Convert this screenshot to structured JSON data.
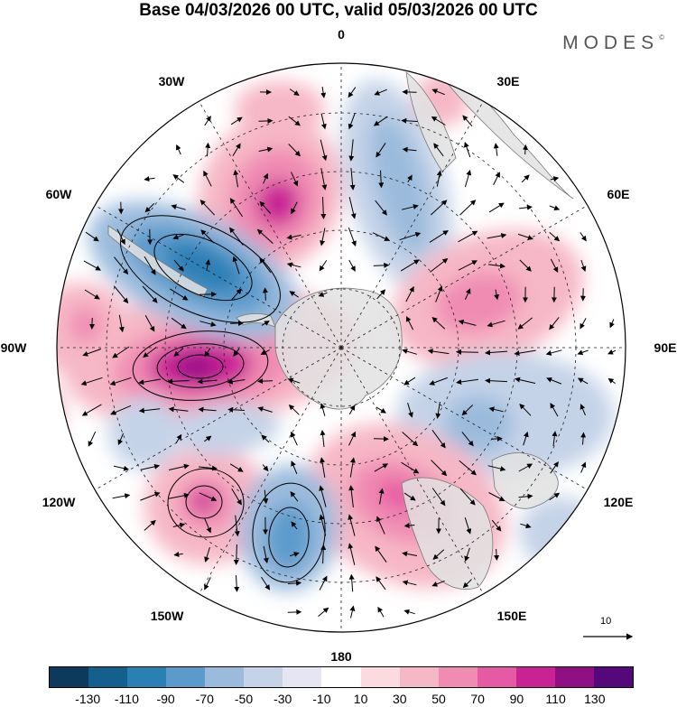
{
  "title": "Base 04/03/2026 00 UTC, valid 05/03/2026 00 UTC",
  "brand": "MODES",
  "brand_mark": "©",
  "map": {
    "projection": "south-polar-stereographic",
    "longitude_labels": [
      "0",
      "30E",
      "60E",
      "90E",
      "120E",
      "150E",
      "180",
      "150W",
      "120W",
      "90W",
      "60W",
      "30W"
    ],
    "grid_style": "dashed",
    "contour_color": "#000000"
  },
  "reference_vector": {
    "label": "10"
  },
  "colorbar": {
    "colors": [
      "#0c3a5c",
      "#135f8e",
      "#2a7fb5",
      "#5b9bcc",
      "#9bbbdd",
      "#c5d3e8",
      "#e6e6f2",
      "#ffffff",
      "#fbdbe0",
      "#f6b7c6",
      "#f08bb2",
      "#e65aa3",
      "#c92295",
      "#900f85",
      "#54087a"
    ],
    "tick_labels": [
      "-130",
      "-110",
      "-90",
      "-70",
      "-50",
      "-30",
      "-10",
      "10",
      "30",
      "50",
      "70",
      "90",
      "110",
      "130"
    ]
  },
  "chart_data": {
    "type": "heatmap",
    "title": "Base 04/03/2026 00 UTC, valid 05/03/2026 00 UTC",
    "field": "anomaly (shaded) with wind vectors, Southern Hemisphere polar view",
    "levels": [
      -130,
      -110,
      -90,
      -70,
      -50,
      -30,
      -10,
      10,
      30,
      50,
      70,
      90,
      110,
      130
    ],
    "anomaly_centers": [
      {
        "region": "near 90W",
        "sign": "positive",
        "peak_bin": "110 to 130"
      },
      {
        "region": "near 60W",
        "sign": "negative",
        "peak_bin": "-110 to -90"
      },
      {
        "region": "near 40W",
        "sign": "positive",
        "peak_bin": "70 to 90"
      },
      {
        "region": "near 15E",
        "sign": "negative",
        "peak_bin": "-70 to -50"
      },
      {
        "region": "near 70E",
        "sign": "positive",
        "peak_bin": "70 to 90"
      },
      {
        "region": "near 105E",
        "sign": "negative",
        "peak_bin": "-70 to -50"
      },
      {
        "region": "near 140E",
        "sign": "positive",
        "peak_bin": "70 to 90"
      },
      {
        "region": "near 160W",
        "sign": "negative",
        "peak_bin": "-90 to -70"
      },
      {
        "region": "near 135W",
        "sign": "positive",
        "peak_bin": "70 to 90"
      },
      {
        "region": "near 115W",
        "sign": "negative",
        "peak_bin": "-50 to -30"
      }
    ],
    "reference_vector_magnitude": 10
  }
}
